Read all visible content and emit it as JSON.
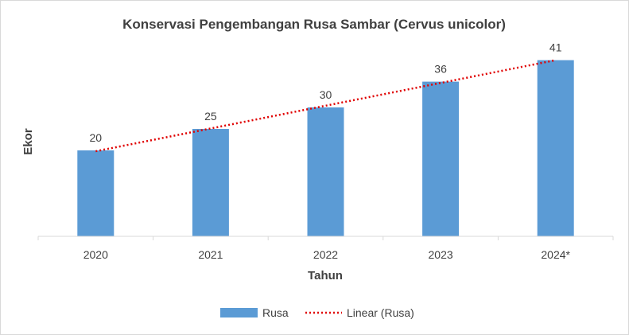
{
  "chart_data": {
    "type": "bar",
    "title": "Konservasi Pengembangan Rusa Sambar (Cervus unicolor)",
    "xlabel": "Tahun",
    "ylabel": "Ekor",
    "categories": [
      "2020",
      "2021",
      "2022",
      "2023",
      "2024*"
    ],
    "series": [
      {
        "name": "Rusa",
        "values": [
          20,
          25,
          30,
          36,
          41
        ],
        "color": "#5b9bd5"
      }
    ],
    "trendline": {
      "name": "Linear (Rusa)",
      "type": "linear",
      "color": "#e00000",
      "style": "dotted"
    },
    "ylim": [
      0,
      45
    ],
    "grid": false,
    "y_axis_visible": false,
    "legend_position": "bottom",
    "data_labels": true
  }
}
